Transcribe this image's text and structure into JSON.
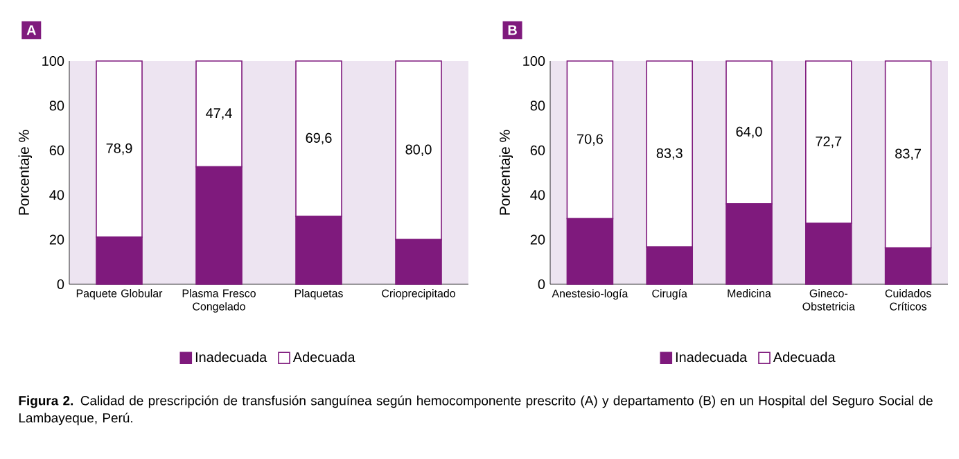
{
  "chart_data": [
    {
      "type": "bar",
      "title": "A",
      "stacked": true,
      "legend": "bottom",
      "ylabel": "Porcentaje %",
      "categories": [
        "Paquete Globular",
        "Plasma Fresco Congelado",
        "Plaquetas",
        "Crioprecipitado"
      ],
      "ylim": [
        0,
        100
      ],
      "yticks": [
        0,
        20,
        40,
        60,
        80,
        100
      ],
      "series": [
        {
          "name": "Inadecuada",
          "color": "#7f1a7d",
          "values": [
            21.1,
            52.6,
            30.4,
            20.0
          ]
        },
        {
          "name": "Adecuada",
          "color": "#ffffff",
          "values": [
            78.9,
            47.4,
            69.6,
            80.0
          ],
          "value_labels": [
            "78,9",
            "47,4",
            "69,6",
            "80,0"
          ]
        }
      ],
      "annotations": [
        "**Figura 2.** Calidad de prescripción de transfusión sanguínea según hemocomponente prescrito (A) y departamento (B) en un Hospital del Seguro Social de Lambayeque, Perú."
      ]
    },
    {
      "type": "bar",
      "title": "B",
      "stacked": true,
      "legend": "bottom",
      "ylabel": "Porcentaje %",
      "categories": [
        "Anestesio-logía",
        "Cirugía",
        "Medicina",
        "Gineco-Obstetricia",
        "Cuidados Críticos"
      ],
      "ylim": [
        0,
        100
      ],
      "yticks": [
        0,
        20,
        40,
        60,
        80,
        100
      ],
      "series": [
        {
          "name": "Inadecuada",
          "color": "#7f1a7d",
          "values": [
            29.4,
            16.7,
            36.0,
            27.3,
            16.3
          ]
        },
        {
          "name": "Adecuada",
          "color": "#ffffff",
          "values": [
            70.6,
            83.3,
            64.0,
            72.7,
            83.7
          ],
          "value_labels": [
            "70,6",
            "83,3",
            "64,0",
            "72,7",
            "83,7"
          ]
        }
      ]
    }
  ]
}
